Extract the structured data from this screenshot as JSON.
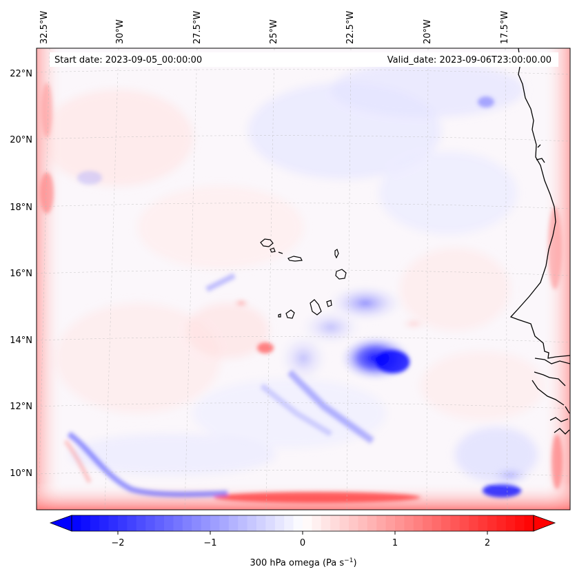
{
  "map": {
    "header_left": "Start date: 2023-09-05_00:00:00",
    "header_right": "Valid_date: 2023-09-06T23:00:00.00",
    "lon_labels": [
      "32.5°W",
      "30°W",
      "27.5°W",
      "25°W",
      "22.5°W",
      "20°W",
      "17.5°W"
    ],
    "lat_labels": [
      "22°N",
      "20°N",
      "18°N",
      "16°N",
      "14°N",
      "12°N",
      "10°N"
    ],
    "projection_gridlines": true
  },
  "colorbar": {
    "label_text": "300 hPa omega (Pa s",
    "label_sup": "−1",
    "label_close": ")",
    "ticks": [
      "−2",
      "−1",
      "0",
      "1",
      "2"
    ],
    "tick_values": [
      -2,
      -1,
      0,
      1,
      2
    ],
    "range": [
      -2.5,
      2.5
    ],
    "extend": "both",
    "colormap": "bwr",
    "color_min": "#0000ff",
    "color_mid": "#ffffff",
    "color_max": "#ff0000"
  },
  "legend_colors": {
    "coastline": "#000000",
    "gridline": "#bbbbbb"
  }
}
